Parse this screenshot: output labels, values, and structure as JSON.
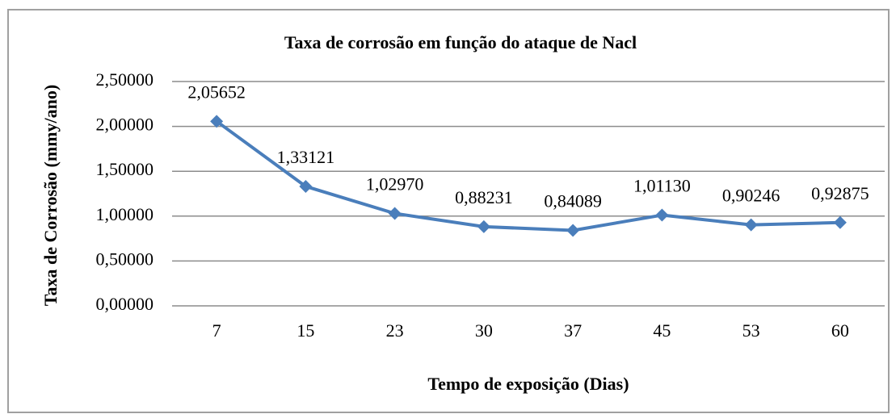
{
  "chart_data": {
    "type": "line",
    "title": "Taxa de corrosão em função do ataque de Nacl",
    "x_label": "Tempo de exposição (Dias)",
    "y_label": "Taxa de Corrosão (mmy/ano)",
    "categories": [
      "7",
      "15",
      "23",
      "30",
      "37",
      "45",
      "53",
      "60"
    ],
    "values": [
      2.05652,
      1.33121,
      1.0297,
      0.88231,
      0.84089,
      1.0113,
      0.90246,
      0.92875
    ],
    "value_labels": [
      "2,05652",
      "1,33121",
      "1,02970",
      "0,88231",
      "0,84089",
      "1,01130",
      "0,90246",
      "0,92875"
    ],
    "color": "#4a7ebb",
    "ylim": [
      0,
      2.5
    ],
    "yticks": [
      {
        "value": 0,
        "label": "0,00000"
      },
      {
        "value": 0.5,
        "label": "0,50000"
      },
      {
        "value": 1,
        "label": "1,00000"
      },
      {
        "value": 1.5,
        "label": "1,50000"
      },
      {
        "value": 2,
        "label": "2,00000"
      },
      {
        "value": 2.5,
        "label": "2,50000"
      }
    ],
    "grid": true
  }
}
